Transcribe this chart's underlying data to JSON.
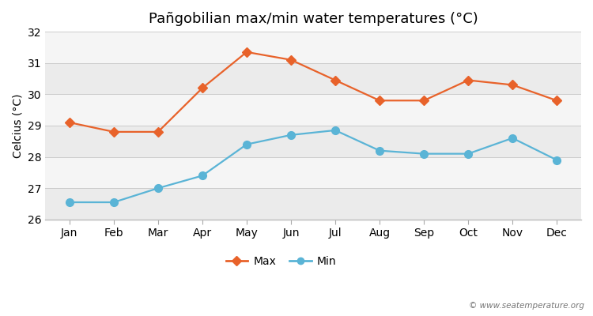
{
  "title": "Pañgobilian max/min water temperatures (°C)",
  "ylabel": "Celcius (°C)",
  "months": [
    "Jan",
    "Feb",
    "Mar",
    "Apr",
    "May",
    "Jun",
    "Jul",
    "Aug",
    "Sep",
    "Oct",
    "Nov",
    "Dec"
  ],
  "max_temps": [
    29.1,
    28.8,
    28.8,
    30.2,
    31.35,
    31.1,
    30.45,
    29.8,
    29.8,
    30.45,
    30.3,
    29.8
  ],
  "min_temps": [
    26.55,
    26.55,
    27.0,
    27.4,
    28.4,
    28.7,
    28.85,
    28.2,
    28.1,
    28.1,
    28.6,
    27.9
  ],
  "max_color": "#e8622a",
  "min_color": "#5ab4d6",
  "fig_bg_color": "#ffffff",
  "plot_bg_light": "#f0f0f0",
  "plot_bg_dark": "#e0e0e0",
  "band_colors": [
    "#ebebeb",
    "#f7f7f7",
    "#ebebeb",
    "#f7f7f7",
    "#ebebeb",
    "#f7f7f7"
  ],
  "ylim": [
    26,
    32
  ],
  "yticks": [
    26,
    27,
    28,
    29,
    30,
    31,
    32
  ],
  "watermark": "© www.seatemperature.org",
  "legend_labels": [
    "Max",
    "Min"
  ],
  "title_fontsize": 13,
  "label_fontsize": 10,
  "tick_fontsize": 10,
  "line_width": 1.6,
  "marker_size_max": 6,
  "marker_size_min": 7
}
